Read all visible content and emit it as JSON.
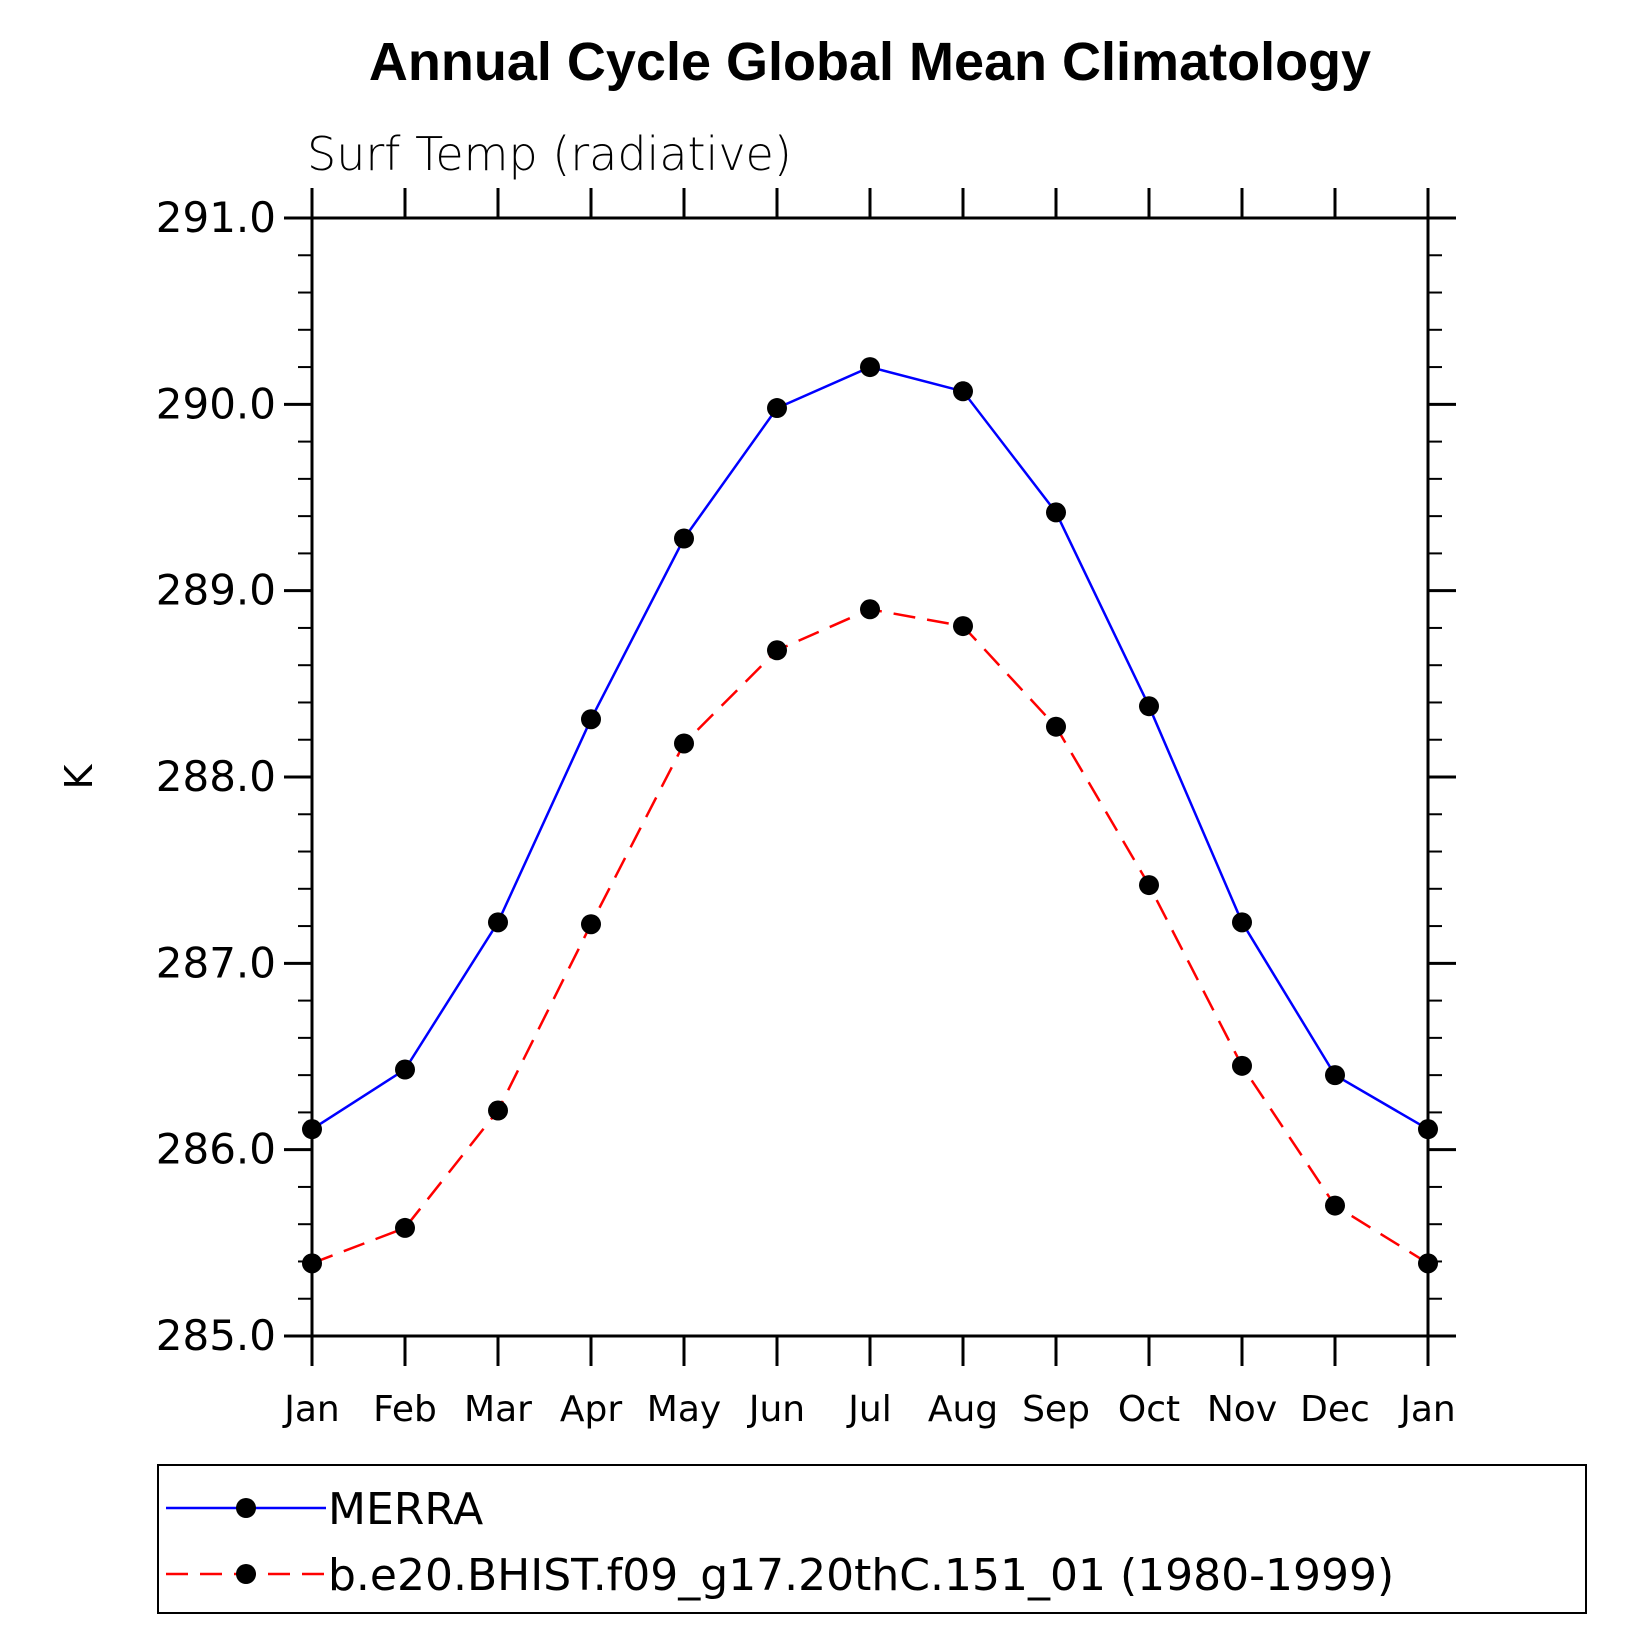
{
  "chart_data": {
    "type": "line",
    "title": "Annual Cycle Global Mean Climatology",
    "subtitle": "Surf Temp (radiative)",
    "xlabel": "",
    "ylabel": "K",
    "ylim": [
      285.0,
      291.0
    ],
    "yticks": [
      "285.0",
      "286.0",
      "287.0",
      "288.0",
      "289.0",
      "290.0",
      "291.0"
    ],
    "categories": [
      "Jan",
      "Feb",
      "Mar",
      "Apr",
      "May",
      "Jun",
      "Jul",
      "Aug",
      "Sep",
      "Oct",
      "Nov",
      "Dec",
      "Jan"
    ],
    "legend_position": "bottom",
    "series": [
      {
        "name": "MERRA",
        "color": "#0000ff",
        "style": "solid",
        "marker": "circle",
        "values": [
          286.11,
          286.43,
          287.22,
          288.31,
          289.28,
          289.98,
          290.2,
          290.07,
          289.42,
          288.38,
          287.22,
          286.4,
          286.11
        ]
      },
      {
        "name": "b.e20.BHIST.f09_g17.20thC.151_01 (1980-1999)",
        "color": "#ff0000",
        "style": "dashed",
        "marker": "circle",
        "values": [
          285.39,
          285.58,
          286.21,
          287.21,
          288.18,
          288.68,
          288.9,
          288.81,
          288.27,
          287.42,
          286.45,
          285.7,
          285.39
        ]
      }
    ]
  }
}
